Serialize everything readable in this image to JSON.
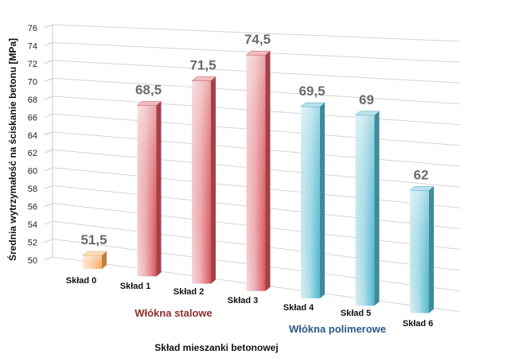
{
  "chart_data": {
    "type": "bar",
    "title": "",
    "xlabel": "Skład mieszanki betonowej",
    "ylabel": "Średnia wytrzymałość na ściskanie betonu [MPa]",
    "ylim": [
      50,
      76
    ],
    "yticks": [
      50,
      52,
      54,
      56,
      58,
      60,
      62,
      64,
      66,
      68,
      70,
      72,
      74,
      76
    ],
    "grid": true,
    "categories": [
      "Skład 0",
      "Skład 1",
      "Skład 2",
      "Skład 3",
      "Skład 4",
      "Skład 5",
      "Skład 6"
    ],
    "values": [
      51.5,
      68.5,
      71.5,
      74.5,
      69.5,
      69,
      62
    ],
    "data_labels": [
      "51,5",
      "68,5",
      "71,5",
      "74,5",
      "69,5",
      "69",
      "62"
    ],
    "groups": [
      {
        "label": "Włókna stalowe",
        "categories": [
          "Skład 1",
          "Skład 2",
          "Skład 3"
        ],
        "color": "#8b2e2e"
      },
      {
        "label": "Włókna polimerowe",
        "categories": [
          "Skład 4",
          "Skład 5",
          "Skład 6"
        ],
        "color": "#2d5a8a"
      }
    ],
    "bar_colors": [
      "#f7a95a",
      "#d9575f",
      "#d9575f",
      "#d9575f",
      "#52b8cf",
      "#52b8cf",
      "#52b8cf"
    ]
  }
}
